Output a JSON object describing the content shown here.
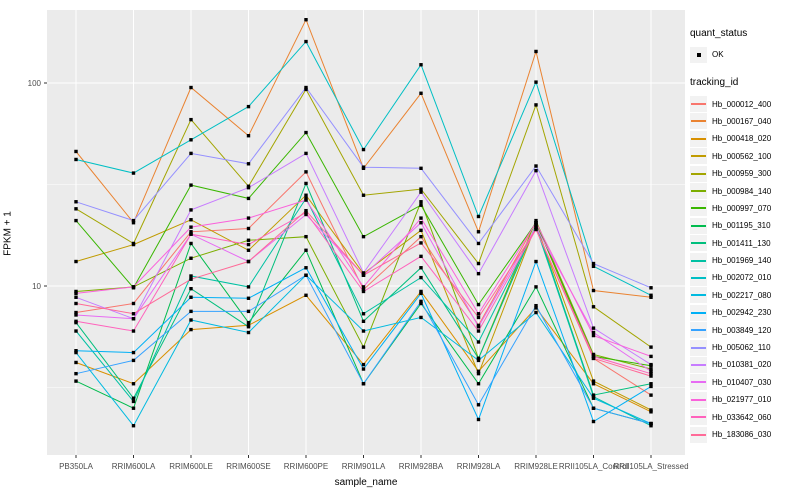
{
  "chart_data": {
    "type": "line",
    "title": "",
    "xlabel": "sample_name",
    "ylabel": "FPKM + 1",
    "y_scale": "log10",
    "y_ticks": [
      10,
      100
    ],
    "y_minor_ticks": [
      3.162,
      31.62
    ],
    "grid": true,
    "legend_position": "right",
    "point_color": "#000000",
    "panel_bg": "#EBEBEB",
    "grid_color": "#FFFFFF",
    "categories": [
      "PB350LA",
      "RRIM600LA",
      "RRIM600LE",
      "RRIM600SE",
      "RRIM600PE",
      "RRIM901LA",
      "RRIM928BA",
      "RRIM928LA",
      "RRIM928LE",
      "RRII105LA_Control",
      "RRII105LA_Stressed"
    ],
    "series": [
      {
        "name": "Hb_000012_400",
        "color": "#F8766D",
        "values": [
          7.4,
          8.2,
          18.5,
          19.2,
          36.5,
          9.6,
          17.5,
          6.4,
          20.5,
          4.4,
          2.9
        ]
      },
      {
        "name": "Hb_000167_040",
        "color": "#EA8331",
        "values": [
          46,
          20.5,
          95,
          55,
          205,
          38,
          89,
          18.5,
          143,
          9.5,
          8.8
        ]
      },
      {
        "name": "Hb_000418_020",
        "color": "#D89000",
        "values": [
          4.2,
          3.3,
          6.1,
          6.4,
          9.0,
          4.1,
          9.4,
          3.8,
          7.8,
          3.3,
          2.4
        ]
      },
      {
        "name": "Hb_000562_100",
        "color": "#C09B00",
        "values": [
          13.2,
          16.0,
          21.2,
          15.0,
          28,
          11.5,
          18.8,
          3.7,
          20.0,
          3.4,
          2.45
        ]
      },
      {
        "name": "Hb_000959_300",
        "color": "#A3A500",
        "values": [
          24,
          16.2,
          66,
          31,
          93,
          28,
          30,
          12.9,
          78,
          7.9,
          5.0
        ]
      },
      {
        "name": "Hb_000984_140",
        "color": "#7CAE00",
        "values": [
          9.4,
          9.9,
          13.7,
          16.8,
          17.5,
          5.0,
          26,
          4.4,
          21,
          4.6,
          3.9
        ]
      },
      {
        "name": "Hb_000997_070",
        "color": "#39B600",
        "values": [
          21,
          9.8,
          31.4,
          27,
          57,
          17.5,
          25,
          8.1,
          20.5,
          4.5,
          4.05
        ]
      },
      {
        "name": "Hb_001195_310",
        "color": "#00BB4E",
        "values": [
          3.4,
          2.5,
          16.2,
          6.6,
          15,
          3.3,
          8.2,
          3.3,
          9.9,
          2.5,
          2.1
        ]
      },
      {
        "name": "Hb_001411_130",
        "color": "#00BF7D",
        "values": [
          6.6,
          2.8,
          9.7,
          6.3,
          32,
          6.7,
          12.3,
          4.4,
          20,
          2.9,
          3.3
        ]
      },
      {
        "name": "Hb_001969_140",
        "color": "#00C1A3",
        "values": [
          6.0,
          2.7,
          11.2,
          9.9,
          27,
          7.3,
          11,
          5.3,
          19.5,
          2.85,
          2.05
        ]
      },
      {
        "name": "Hb_002072_010",
        "color": "#00BFC4",
        "values": [
          42,
          36,
          52.5,
          76.5,
          160,
          47,
          123,
          22,
          101,
          12.5,
          9.0
        ]
      },
      {
        "name": "Hb_002217_080",
        "color": "#00BAE0",
        "values": [
          4.7,
          2.05,
          6.8,
          5.9,
          11.3,
          6.0,
          7.0,
          4.3,
          7.4,
          2.8,
          2.1
        ]
      },
      {
        "name": "Hb_002942_230",
        "color": "#00B0F6",
        "values": [
          4.8,
          4.7,
          8.8,
          8.7,
          12.3,
          3.9,
          9.2,
          2.2,
          13.2,
          2.15,
          3.2
        ]
      },
      {
        "name": "Hb_003849_120",
        "color": "#35A2FF",
        "values": [
          3.7,
          4.3,
          7.5,
          7.5,
          11.3,
          3.3,
          8.4,
          2.6,
          8.0,
          2.5,
          2.1
        ]
      },
      {
        "name": "Hb_005062_110",
        "color": "#9590FF",
        "values": [
          26,
          21,
          45,
          40,
          95,
          38.5,
          38,
          16.2,
          39,
          12.9,
          9.8
        ]
      },
      {
        "name": "Hb_010381_020",
        "color": "#C77CFF",
        "values": [
          8.8,
          6.9,
          23.7,
          30.5,
          45,
          11.6,
          29,
          11.5,
          37,
          6.2,
          4.1
        ]
      },
      {
        "name": "Hb_010407_030",
        "color": "#E76BF3",
        "values": [
          7.2,
          6.9,
          18.0,
          13.2,
          22.5,
          11.3,
          20.5,
          6.3,
          19.5,
          5.9,
          3.8
        ]
      },
      {
        "name": "Hb_021977_010",
        "color": "#FA62DB",
        "values": [
          9.2,
          9.9,
          19.5,
          21.6,
          26.5,
          9.9,
          21.6,
          7.3,
          20.5,
          5.7,
          4.5
        ]
      },
      {
        "name": "Hb_033642_060",
        "color": "#FF62BC",
        "values": [
          6.7,
          6.0,
          18.0,
          16.0,
          23,
          9.4,
          14,
          6.0,
          19.0,
          4.5,
          3.7
        ]
      },
      {
        "name": "Hb_183086_030",
        "color": "#FF6A98",
        "values": [
          8.2,
          7.3,
          10.8,
          13.2,
          23.5,
          11.3,
          16.3,
          7.0,
          19.0,
          4.4,
          3.6
        ]
      }
    ],
    "legend": {
      "quant_status": {
        "title": "quant_status",
        "items": [
          {
            "label": "OK"
          }
        ]
      },
      "tracking_id": {
        "title": "tracking_id"
      }
    }
  }
}
